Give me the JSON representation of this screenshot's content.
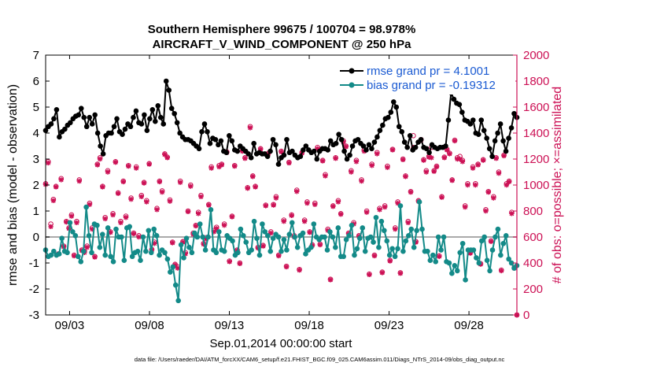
{
  "chart_data": {
    "type": "line",
    "title_line1": "Southern Hemisphere 99675 / 100704 = 98.978%",
    "title_line2": "AIRCRAFT_V_WIND_COMPONENT @ 250 hPa",
    "xlabel": "Sep.01,2014 00:00:00 start",
    "ylabel_left": "rmse and bias (model - observation)",
    "ylabel_right": "# of obs: o=possible; ×=assimilated",
    "footnote": "data file: /Users/raeder/DAI/ATM_forcXX/CAM6_setup/f.e21.FHIST_BGC.f09_025.CAM6assim.011/Diags_NTrS_2014-09/obs_diag_output.nc",
    "xlim": [
      1.5,
      31.0
    ],
    "ylim_left": [
      -3,
      7
    ],
    "ylim_right": [
      0,
      2000
    ],
    "x_ticks": [
      3,
      8,
      13,
      18,
      23,
      28
    ],
    "x_tick_labels": [
      "09/03",
      "09/08",
      "09/13",
      "09/18",
      "09/23",
      "09/28"
    ],
    "y_ticks_left": [
      "-3",
      "-2",
      "-1",
      "0",
      "1",
      "2",
      "3",
      "4",
      "5",
      "6",
      "7"
    ],
    "y_ticks_right": [
      "0",
      "200",
      "400",
      "600",
      "800",
      "1000",
      "1200",
      "1400",
      "1600",
      "1800",
      "2000"
    ],
    "colors": {
      "rmse": "#000000",
      "bias": "#138a88",
      "obs": "#cc1155",
      "zero": "#aaaaaa"
    },
    "series": [
      {
        "name": "rmse grand pr = 4.1001",
        "axis": "left",
        "values": [
          4.1,
          4.25,
          4.35,
          4.55,
          4.9,
          3.85,
          4.05,
          4.15,
          4.3,
          4.4,
          4.55,
          4.65,
          4.7,
          4.95,
          4.6,
          4.25,
          4.6,
          4.35,
          4.7,
          4.0,
          3.5,
          3.2,
          3.9,
          4.0,
          4.0,
          4.25,
          4.55,
          4.05,
          3.95,
          4.15,
          4.35,
          4.25,
          4.6,
          4.85,
          4.4,
          4.35,
          4.7,
          4.1,
          4.55,
          4.9,
          4.45,
          5.05,
          4.6,
          4.35,
          6.0,
          5.65,
          4.95,
          4.75,
          4.4,
          4.0,
          3.85,
          3.75,
          3.75,
          3.7,
          3.6,
          3.5,
          3.4,
          4.05,
          4.35,
          4.05,
          3.6,
          3.8,
          3.75,
          3.55,
          3.7,
          3.3,
          3.25,
          3.9,
          3.7,
          3.35,
          3.3,
          3.5,
          3.4,
          3.3,
          3.2,
          3.05,
          3.6,
          3.2,
          3.25,
          3.2,
          3.2,
          3.1,
          3.3,
          3.75,
          3.55,
          2.8,
          3.05,
          3.15,
          3.75,
          3.25,
          3.3,
          3.15,
          3.05,
          3.1,
          3.35,
          3.5,
          3.35,
          3.25,
          3.3,
          3.0,
          3.3,
          3.4,
          3.4,
          3.35,
          3.7,
          3.55,
          3.6,
          3.95,
          3.75,
          3.3,
          3.0,
          3.15,
          3.5,
          3.7,
          3.75,
          3.6,
          3.5,
          3.35,
          3.55,
          3.4,
          3.65,
          3.85,
          4.1,
          4.3,
          4.55,
          4.6,
          4.8,
          5.2,
          5.0,
          4.25,
          4.05,
          3.65,
          3.45,
          3.9,
          3.35,
          3.45,
          3.65,
          3.75,
          3.45,
          3.4,
          3.25,
          3.55,
          3.45,
          3.4,
          3.45,
          3.45,
          3.5,
          4.5,
          5.55,
          5.3,
          5.15,
          5.1,
          4.8,
          4.5,
          4.45,
          4.35,
          4.5,
          4.0,
          3.95,
          4.5,
          4.1,
          3.8,
          3.4,
          3.1,
          3.7,
          4.0,
          4.35,
          3.7,
          3.3,
          3.8,
          4.2,
          4.75,
          4.6
        ]
      },
      {
        "name": "bias grand pr = -0.19312",
        "axis": "left",
        "values": [
          -0.5,
          -0.75,
          -0.7,
          -0.55,
          -0.7,
          -0.65,
          -0.05,
          -0.55,
          -0.6,
          0.55,
          0.2,
          0.05,
          -0.75,
          -0.95,
          -0.55,
          1.15,
          0.05,
          -0.6,
          0.5,
          0.45,
          -0.4,
          0.1,
          -0.7,
          0.35,
          -0.75,
          -0.95,
          0.3,
          0.0,
          0.0,
          -0.9,
          0.35,
          0.4,
          -0.75,
          -0.6,
          -0.55,
          -0.9,
          0.0,
          -0.55,
          0.25,
          -0.6,
          0.3,
          0.05,
          -0.7,
          -0.5,
          -0.6,
          -0.85,
          -1.35,
          -1.15,
          -1.85,
          -2.45,
          -0.3,
          -0.8,
          -0.05,
          -0.4,
          -0.6,
          0.15,
          0.0,
          0.5,
          0.0,
          -0.5,
          0.0,
          1.05,
          -0.5,
          -0.6,
          0.2,
          -0.5,
          -0.55,
          0.05,
          -0.05,
          -0.15,
          -0.7,
          -0.6,
          0.3,
          0.05,
          -0.2,
          -0.6,
          -0.5,
          0.6,
          -0.05,
          -0.7,
          0.5,
          0.2,
          0.05,
          -0.55,
          -0.05,
          0.1,
          0.0,
          -0.55,
          -0.1,
          -0.5,
          0.1,
          0.55,
          0.0,
          -0.4,
          0.05,
          0.15,
          -0.65,
          -0.5,
          -0.4,
          0.5,
          0.0,
          -0.1,
          0.0,
          0.0,
          -0.5,
          0.2,
          0.0,
          -0.4,
          0.35,
          -0.75,
          -0.75,
          -0.1,
          0.05,
          0.45,
          -0.7,
          -0.45,
          -0.05,
          0.35,
          -0.55,
          -0.05,
          0.0,
          -0.2,
          0.75,
          -0.4,
          0.6,
          0.25,
          -0.15,
          -0.7,
          -0.45,
          -0.75,
          -0.45,
          1.2,
          -0.55,
          -0.15,
          0.05,
          0.3,
          -0.4,
          0.25,
          1.35,
          0.3,
          -0.55,
          -0.55,
          -0.9,
          -0.7,
          -0.95,
          0.0,
          -0.5,
          0.0,
          -0.95,
          -1.0,
          -1.4,
          -1.1,
          -1.3,
          -0.6,
          -0.25,
          -1.65,
          -0.5,
          -0.5,
          -0.5,
          -0.8,
          -1.0,
          -0.15,
          0.0,
          -0.9,
          -1.3,
          -0.5,
          0.0,
          0.3,
          -0.7,
          -0.25,
          0.05,
          -0.85,
          -1.0,
          -1.2,
          -1.1
        ]
      },
      {
        "name": "obs assimilated",
        "axis": "right",
        "values": [
          1005,
          1170,
          680,
          880,
          985,
          470,
          1040,
          525,
          715,
          665,
          760,
          455,
          710,
          1030,
          495,
          480,
          520,
          850,
          660,
          445,
          1155,
          1200,
          985,
          740,
          1100,
          635,
          770,
          1175,
          935,
          710,
          1025,
          750,
          1145,
          890,
          625,
          1130,
          600,
          910,
          1015,
          870,
          1160,
          500,
          550,
          810,
          1025,
          945,
          1235,
          1210,
          875,
          555,
          385,
          360,
          1020,
          560,
          470,
          795,
          990,
          620,
          685,
          780,
          910,
          545,
          585,
          845,
          1130,
          640,
          665,
          1140,
          1155,
          690,
          1250,
          410,
          755,
          1145,
          495,
          395,
          1260,
          1205,
          975,
          1440,
          1065,
          985,
          515,
          1275,
          530,
          840,
          1240,
          630,
          845,
          900,
          455,
          1255,
          720,
          370,
          1170,
          765,
          600,
          950,
          345,
          1245,
          720,
          860,
          635,
          535,
          850,
          1280,
          540,
          1185,
          1070,
          650,
          270,
          835,
          1205,
          870,
          775,
          1330,
          1295,
          625,
          1100,
          700,
          1180,
          605,
          1030,
          1260,
          790,
          310,
          1150,
          455,
          1240,
          810,
          325,
          830,
          1135,
          415,
          1270,
          660,
          860,
          320,
          1195,
          1065,
          710,
          945,
          1290,
          560,
          875,
          1345,
          1190,
          1100,
          1215,
          1210,
          1105,
          1140,
          450,
          905,
          1210,
          1270,
          1240,
          1035,
          1340,
          1200,
          1200,
          1180,
          830,
          1000,
          475,
          1130,
          1000,
          1155,
          390,
          1190,
          800,
          945,
          565,
          900,
          1205,
          1090,
          340,
          1225,
          1000,
          1025,
          780,
          360,
          0
        ]
      },
      {
        "name": "obs possible",
        "axis": "right",
        "values": [
          1010,
          1180,
          700,
          890,
          990,
          470,
          1050,
          530,
          720,
          670,
          770,
          460,
          720,
          1040,
          500,
          490,
          530,
          860,
          670,
          450,
          1160,
          1210,
          990,
          750,
          1110,
          640,
          780,
          1180,
          940,
          720,
          1030,
          760,
          1150,
          900,
          630,
          1140,
          610,
          920,
          1020,
          880,
          1165,
          505,
          560,
          820,
          1030,
          955,
          1240,
          1215,
          885,
          560,
          390,
          370,
          1030,
          565,
          480,
          800,
          1000,
          630,
          690,
          790,
          920,
          550,
          595,
          850,
          1140,
          650,
          675,
          1150,
          1160,
          700,
          1255,
          415,
          760,
          1150,
          500,
          400,
          1265,
          1210,
          980,
          1450,
          1070,
          990,
          520,
          1280,
          535,
          845,
          1245,
          640,
          850,
          910,
          460,
          1260,
          730,
          375,
          1175,
          770,
          610,
          960,
          350,
          1250,
          730,
          870,
          640,
          540,
          860,
          1290,
          545,
          1190,
          1080,
          660,
          275,
          840,
          1210,
          880,
          780,
          1340,
          1300,
          630,
          1110,
          710,
          1190,
          610,
          1040,
          1270,
          800,
          315,
          1160,
          460,
          1250,
          820,
          330,
          840,
          1145,
          420,
          1275,
          670,
          870,
          325,
          1200,
          1070,
          720,
          950,
          1380,
          565,
          880,
          1350,
          1195,
          1110,
          1220,
          1290,
          1110,
          1145,
          455,
          910,
          1215,
          1275,
          1245,
          1040,
          1345,
          1210,
          1220,
          1190,
          840,
          1010,
          480,
          1140,
          1010,
          1160,
          395,
          1195,
          810,
          950,
          570,
          910,
          1210,
          1100,
          345,
          1230,
          1010,
          1030,
          790,
          365,
          0
        ]
      }
    ],
    "legend": [
      {
        "label": "rmse grand pr = 4.1001",
        "color": "#000000"
      },
      {
        "label": "bias grand pr = -0.19312",
        "color": "#138a88"
      }
    ]
  }
}
